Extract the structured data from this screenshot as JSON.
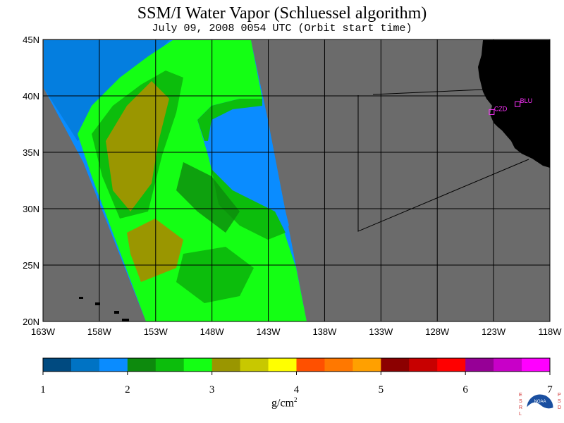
{
  "title": "SSM/I Water Vapor (Schluessel algorithm)",
  "subtitle": "July 09, 2008  0054 UTC  (Orbit start time)",
  "map": {
    "lat_labels": [
      "45N",
      "40N",
      "35N",
      "30N",
      "25N",
      "20N"
    ],
    "lon_labels": [
      "163W",
      "158W",
      "153W",
      "148W",
      "143W",
      "138W",
      "133W",
      "128W",
      "123W",
      "118W"
    ],
    "stations": [
      {
        "label": "CZD",
        "lon": -123.2,
        "lat": 38.6
      },
      {
        "label": "BLU",
        "lon": -120.9,
        "lat": 39.3
      }
    ],
    "colors": {
      "ocean": "#6b6b6b",
      "land": "#000000",
      "station": "#ff33ff",
      "grid": "#000000"
    }
  },
  "colorbar": {
    "ticks": [
      "1",
      "2",
      "3",
      "4",
      "5",
      "6",
      "7"
    ],
    "unit_base": "g/cm",
    "unit_exp": "2",
    "colors": [
      "#004a80",
      "#0073c4",
      "#0a8cff",
      "#0d8a0d",
      "#0cbd0c",
      "#14ff14",
      "#9a9600",
      "#c8c800",
      "#ffff00",
      "#ff5000",
      "#ff7800",
      "#ffa000",
      "#8c0000",
      "#c80000",
      "#ff0000",
      "#960096",
      "#c800c8",
      "#ff00ff"
    ]
  },
  "logo": {
    "left_text": "ESRL",
    "right_text": "PSD",
    "center_text": "NOAA"
  }
}
